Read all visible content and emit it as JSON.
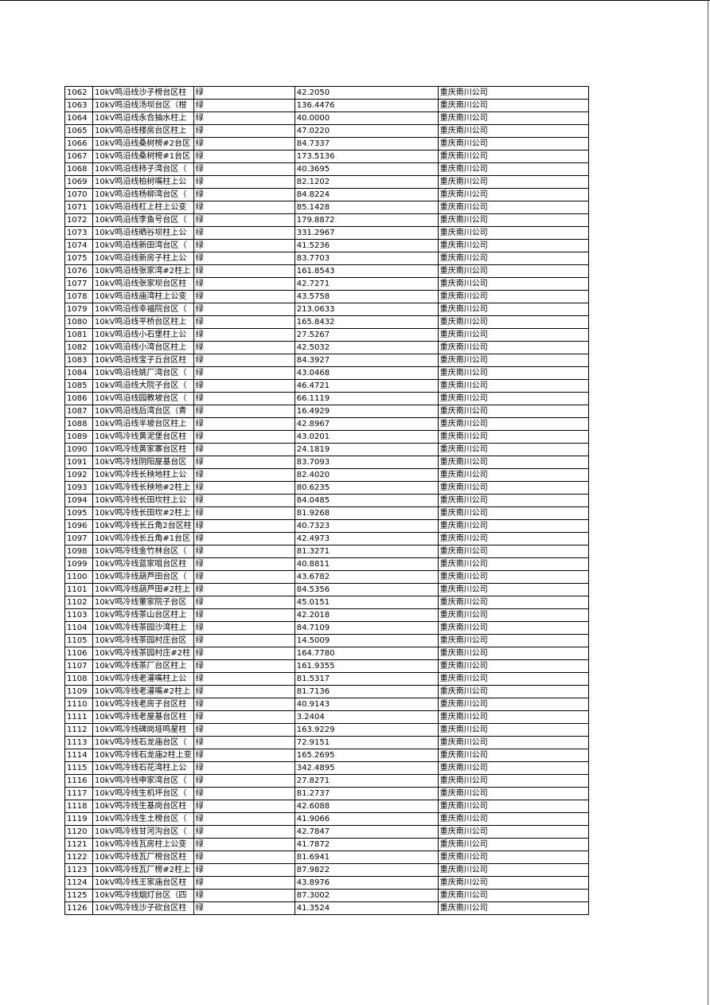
{
  "table": {
    "rows": [
      [
        "1062",
        "10kV鸣沿线沙子榜台区柱",
        "绿",
        "42.2050",
        "重庆南川公司"
      ],
      [
        "1063",
        "10kV鸣沿线汤坝台区（柑",
        "绿",
        "136.4476",
        "重庆南川公司"
      ],
      [
        "1064",
        "10kV鸣沿线永合抽水柱上",
        "绿",
        "40.0000",
        "重庆南川公司"
      ],
      [
        "1065",
        "10kV鸣沿线楼房台区柱上",
        "绿",
        "47.0220",
        "重庆南川公司"
      ],
      [
        "1066",
        "10kV鸣沿线桑树榜#2台区",
        "绿",
        "84.7337",
        "重庆南川公司"
      ],
      [
        "1067",
        "10kV鸣沿线桑树榜#1台区",
        "绿",
        "173.5136",
        "重庆南川公司"
      ],
      [
        "1068",
        "10kV鸣沿线柿子湾台区（",
        "绿",
        "40.3695",
        "重庆南川公司"
      ],
      [
        "1069",
        "10kV鸣沿线柏树嘴柱上公",
        "绿",
        "82.1202",
        "重庆南川公司"
      ],
      [
        "1070",
        "10kV鸣沿线杨柳湾台区（",
        "绿",
        "84.8224",
        "重庆南川公司"
      ],
      [
        "1071",
        "10kV鸣沿线杠上柱上公变",
        "绿",
        "85.1428",
        "重庆南川公司"
      ],
      [
        "1072",
        "10kV鸣沿线李鱼号台区（",
        "绿",
        "179.8872",
        "重庆南川公司"
      ],
      [
        "1073",
        "10kV鸣沿线晒谷坝柱上公",
        "绿",
        "331.2967",
        "重庆南川公司"
      ],
      [
        "1074",
        "10kV鸣沿线新田湾台区（",
        "绿",
        "41.5236",
        "重庆南川公司"
      ],
      [
        "1075",
        "10kV鸣沿线新房子柱上公",
        "绿",
        "83.7703",
        "重庆南川公司"
      ],
      [
        "1076",
        "10kV鸣沿线张家湾#2柱上",
        "绿",
        "161.8543",
        "重庆南川公司"
      ],
      [
        "1077",
        "10kV鸣沿线张家坝台区柱",
        "绿",
        "42.7271",
        "重庆南川公司"
      ],
      [
        "1078",
        "10kV鸣沿线庙湾柱上公变",
        "绿",
        "43.5758",
        "重庆南川公司"
      ],
      [
        "1079",
        "10kV鸣沿线幸福院台区（",
        "绿",
        "213.0633",
        "重庆南川公司"
      ],
      [
        "1080",
        "10kV鸣沿线平桥台区柱上",
        "绿",
        "165.8432",
        "重庆南川公司"
      ],
      [
        "1081",
        "10kV鸣沿线小石堡柱上公",
        "绿",
        "27.5267",
        "重庆南川公司"
      ],
      [
        "1082",
        "10kV鸣沿线小湾台区柱上",
        "绿",
        "42.5032",
        "重庆南川公司"
      ],
      [
        "1083",
        "10kV鸣沿线宝子丘台区柱",
        "绿",
        "84.3927",
        "重庆南川公司"
      ],
      [
        "1084",
        "10kV鸣沿线姚厂湾台区（",
        "绿",
        "43.0468",
        "重庆南川公司"
      ],
      [
        "1085",
        "10kV鸣沿线大院子台区（",
        "绿",
        "46.4721",
        "重庆南川公司"
      ],
      [
        "1086",
        "10kV鸣沿线园教坡台区（",
        "绿",
        "66.1119",
        "重庆南川公司"
      ],
      [
        "1087",
        "10kV鸣沿线后湾台区（青",
        "绿",
        "16.4929",
        "重庆南川公司"
      ],
      [
        "1088",
        "10kV鸣沿线半坡台区柱上",
        "绿",
        "42.8967",
        "重庆南川公司"
      ],
      [
        "1089",
        "10kV鸣冷线黄泥堡台区柱",
        "绿",
        "43.0201",
        "重庆南川公司"
      ],
      [
        "1090",
        "10kV鸣冷线黄家寨台区柱",
        "绿",
        "24.1819",
        "重庆南川公司"
      ],
      [
        "1091",
        "10kV鸣冷线阴阳屋基台区",
        "绿",
        "83.7093",
        "重庆南川公司"
      ],
      [
        "1092",
        "10kV鸣冷线长秧地柱上公",
        "绿",
        "82.4020",
        "重庆南川公司"
      ],
      [
        "1093",
        "10kV鸣冷线长秧地#2柱上",
        "绿",
        "80.6235",
        "重庆南川公司"
      ],
      [
        "1094",
        "10kV鸣冷线长田坎柱上公",
        "绿",
        "84.0485",
        "重庆南川公司"
      ],
      [
        "1095",
        "10kV鸣冷线长田坎#2柱上",
        "绿",
        "81.9268",
        "重庆南川公司"
      ],
      [
        "1096",
        "10kV鸣冷线长丘角2台区柱",
        "绿",
        "40.7323",
        "重庆南川公司"
      ],
      [
        "1097",
        "10kV鸣冷线长丘角#1台区",
        "绿",
        "42.4973",
        "重庆南川公司"
      ],
      [
        "1098",
        "10kV鸣冷线金竹林台区（",
        "绿",
        "81.3271",
        "重庆南川公司"
      ],
      [
        "1099",
        "10kV鸣冷线蓝家咀台区柱",
        "绿",
        "40.8811",
        "重庆南川公司"
      ],
      [
        "1100",
        "10kV鸣冷线葫芦田台区（",
        "绿",
        "43.6782",
        "重庆南川公司"
      ],
      [
        "1101",
        "10kV鸣冷线葫芦田#2柱上",
        "绿",
        "84.5356",
        "重庆南川公司"
      ],
      [
        "1102",
        "10kV鸣冷线董家院子台区",
        "绿",
        "45.0151",
        "重庆南川公司"
      ],
      [
        "1103",
        "10kV鸣冷线茶山台区柱上",
        "绿",
        "42.2018",
        "重庆南川公司"
      ],
      [
        "1104",
        "10kV鸣冷线茶园沙湾柱上",
        "绿",
        "84.7109",
        "重庆南川公司"
      ],
      [
        "1105",
        "10kV鸣冷线茶园村庄台区",
        "绿",
        "14.5009",
        "重庆南川公司"
      ],
      [
        "1106",
        "10kV鸣冷线茶园村庄#2柱",
        "绿",
        "164.7780",
        "重庆南川公司"
      ],
      [
        "1107",
        "10kV鸣冷线茶厂台区柱上",
        "绿",
        "161.9355",
        "重庆南川公司"
      ],
      [
        "1108",
        "10kV鸣冷线老灌嘴柱上公",
        "绿",
        "81.5317",
        "重庆南川公司"
      ],
      [
        "1109",
        "10kV鸣冷线老灌嘴#2柱上",
        "绿",
        "81.7136",
        "重庆南川公司"
      ],
      [
        "1110",
        "10kV鸣冷线老房子台区柱",
        "绿",
        "40.9143",
        "重庆南川公司"
      ],
      [
        "1111",
        "10kV鸣冷线老屋基台区柱",
        "绿",
        "3.2404",
        "重庆南川公司"
      ],
      [
        "1112",
        "10kV鸣冷线碑岗垭鸣星柱",
        "绿",
        "163.9229",
        "重庆南川公司"
      ],
      [
        "1113",
        "10kV鸣冷线石龙庙台区（",
        "绿",
        "72.9151",
        "重庆南川公司"
      ],
      [
        "1114",
        "10kV鸣冷线石龙庙2柱上变",
        "绿",
        "165.2695",
        "重庆南川公司"
      ],
      [
        "1115",
        "10kV鸣冷线石花湾柱上公",
        "绿",
        "342.4895",
        "重庆南川公司"
      ],
      [
        "1116",
        "10kV鸣冷线申家湾台区（",
        "绿",
        "27.8271",
        "重庆南川公司"
      ],
      [
        "1117",
        "10kV鸣冷线生机坪台区（",
        "绿",
        "81.2737",
        "重庆南川公司"
      ],
      [
        "1118",
        "10kV鸣冷线生基岗台区柱",
        "绿",
        "42.6088",
        "重庆南川公司"
      ],
      [
        "1119",
        "10kV鸣冷线生土榜台区（",
        "绿",
        "41.9066",
        "重庆南川公司"
      ],
      [
        "1120",
        "10kV鸣冷线甘河沟台区（",
        "绿",
        "42.7847",
        "重庆南川公司"
      ],
      [
        "1121",
        "10kV鸣冷线瓦房柱上公变",
        "绿",
        "41.7872",
        "重庆南川公司"
      ],
      [
        "1122",
        "10kV鸣冷线瓦厂榜台区柱",
        "绿",
        "81.6941",
        "重庆南川公司"
      ],
      [
        "1123",
        "10kV鸣冷线瓦厂榜#2柱上",
        "绿",
        "87.9822",
        "重庆南川公司"
      ],
      [
        "1124",
        "10kV鸣冷线王家庙台区柱",
        "绿",
        "43.8976",
        "重庆南川公司"
      ],
      [
        "1125",
        "10kV鸣冷线烟灯台区（四",
        "绿",
        "87.3002",
        "重庆南川公司"
      ],
      [
        "1126",
        "10kV鸣冷线沙子砍台区柱",
        "绿",
        "41.3524",
        "重庆南川公司"
      ]
    ]
  }
}
